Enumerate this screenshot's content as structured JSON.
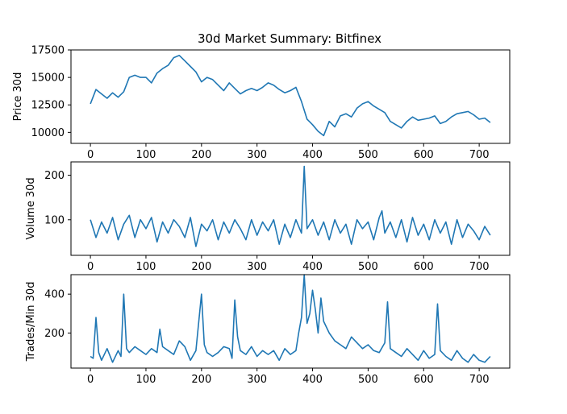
{
  "title": "30d Market Summary: Bitfinex",
  "chart_data": [
    {
      "type": "line",
      "ylabel": "Price 30d",
      "color": "#1f77b4",
      "xlim": [
        -35,
        755
      ],
      "ylim": [
        9000,
        17500
      ],
      "xticks": [
        0,
        100,
        200,
        300,
        400,
        500,
        600,
        700
      ],
      "yticks": [
        10000,
        12500,
        15000,
        17500
      ],
      "x": [
        0,
        10,
        20,
        30,
        40,
        50,
        60,
        70,
        80,
        90,
        100,
        110,
        120,
        130,
        140,
        150,
        160,
        170,
        180,
        190,
        200,
        210,
        220,
        230,
        240,
        250,
        260,
        270,
        280,
        290,
        300,
        310,
        320,
        330,
        340,
        350,
        360,
        370,
        380,
        390,
        400,
        410,
        420,
        430,
        440,
        450,
        460,
        470,
        480,
        490,
        500,
        510,
        520,
        530,
        540,
        550,
        560,
        570,
        580,
        590,
        600,
        610,
        620,
        630,
        640,
        650,
        660,
        670,
        680,
        690,
        700,
        710,
        720
      ],
      "y": [
        12600,
        13900,
        13500,
        13100,
        13600,
        13200,
        13700,
        15000,
        15200,
        15000,
        15000,
        14500,
        15400,
        15800,
        16100,
        16800,
        17000,
        16500,
        16000,
        15500,
        14600,
        15000,
        14800,
        14300,
        13800,
        14500,
        14000,
        13500,
        13800,
        14000,
        13800,
        14100,
        14500,
        14300,
        13900,
        13600,
        13800,
        14100,
        12800,
        11200,
        10700,
        10100,
        9700,
        11000,
        10500,
        11500,
        11700,
        11400,
        12200,
        12600,
        12800,
        12400,
        12100,
        11800,
        11000,
        10700,
        10400,
        11000,
        11400,
        11100,
        11200,
        11300,
        11500,
        10800,
        11000,
        11400,
        11700,
        11800,
        11900,
        11600,
        11200,
        11300,
        10900
      ]
    },
    {
      "type": "line",
      "ylabel": "Volume 30d",
      "color": "#1f77b4",
      "xlim": [
        -35,
        755
      ],
      "ylim": [
        20,
        230
      ],
      "xticks": [
        0,
        100,
        200,
        300,
        400,
        500,
        600,
        700
      ],
      "yticks": [
        100,
        200
      ],
      "x": [
        0,
        10,
        20,
        30,
        40,
        50,
        60,
        70,
        80,
        90,
        100,
        110,
        120,
        130,
        140,
        150,
        160,
        170,
        180,
        190,
        200,
        210,
        220,
        230,
        240,
        250,
        260,
        270,
        280,
        290,
        300,
        310,
        320,
        330,
        340,
        350,
        360,
        370,
        380,
        385,
        390,
        400,
        410,
        420,
        430,
        440,
        450,
        460,
        470,
        480,
        490,
        500,
        510,
        520,
        525,
        530,
        540,
        550,
        560,
        570,
        580,
        590,
        600,
        610,
        620,
        630,
        640,
        650,
        660,
        670,
        680,
        690,
        700,
        710,
        720
      ],
      "y": [
        100,
        60,
        95,
        70,
        105,
        55,
        90,
        110,
        60,
        100,
        80,
        105,
        50,
        95,
        70,
        100,
        85,
        60,
        105,
        40,
        90,
        75,
        100,
        55,
        95,
        70,
        100,
        80,
        55,
        100,
        65,
        95,
        75,
        100,
        45,
        90,
        60,
        100,
        70,
        220,
        80,
        100,
        65,
        95,
        55,
        100,
        70,
        90,
        45,
        100,
        80,
        95,
        55,
        105,
        120,
        70,
        95,
        60,
        100,
        50,
        105,
        65,
        90,
        55,
        100,
        70,
        95,
        45,
        100,
        60,
        90,
        75,
        55,
        85,
        65
      ]
    },
    {
      "type": "line",
      "ylabel": "Trades/Min 30d",
      "color": "#1f77b4",
      "xlim": [
        -35,
        755
      ],
      "ylim": [
        20,
        500
      ],
      "xticks": [
        0,
        100,
        200,
        300,
        400,
        500,
        600,
        700
      ],
      "yticks": [
        200,
        400
      ],
      "x": [
        0,
        5,
        10,
        15,
        20,
        30,
        40,
        50,
        55,
        60,
        65,
        70,
        80,
        90,
        100,
        110,
        120,
        125,
        130,
        140,
        150,
        160,
        170,
        180,
        190,
        200,
        205,
        210,
        220,
        230,
        240,
        250,
        255,
        260,
        265,
        270,
        280,
        290,
        300,
        310,
        320,
        330,
        340,
        350,
        360,
        370,
        375,
        380,
        385,
        390,
        395,
        400,
        405,
        410,
        415,
        420,
        430,
        440,
        450,
        460,
        470,
        480,
        490,
        500,
        510,
        520,
        530,
        535,
        540,
        550,
        560,
        570,
        580,
        590,
        600,
        610,
        620,
        625,
        630,
        640,
        650,
        660,
        670,
        680,
        690,
        700,
        710,
        720
      ],
      "y": [
        80,
        70,
        280,
        100,
        60,
        120,
        50,
        110,
        80,
        400,
        120,
        100,
        130,
        110,
        90,
        120,
        100,
        220,
        130,
        110,
        90,
        160,
        130,
        60,
        110,
        400,
        140,
        100,
        80,
        100,
        130,
        120,
        70,
        370,
        180,
        110,
        90,
        130,
        80,
        110,
        90,
        110,
        60,
        120,
        90,
        110,
        200,
        280,
        500,
        250,
        300,
        420,
        320,
        200,
        380,
        260,
        200,
        160,
        140,
        120,
        180,
        150,
        120,
        140,
        110,
        100,
        150,
        360,
        120,
        100,
        80,
        120,
        90,
        60,
        110,
        70,
        90,
        350,
        110,
        80,
        60,
        110,
        70,
        50,
        90,
        60,
        50,
        80
      ]
    }
  ]
}
